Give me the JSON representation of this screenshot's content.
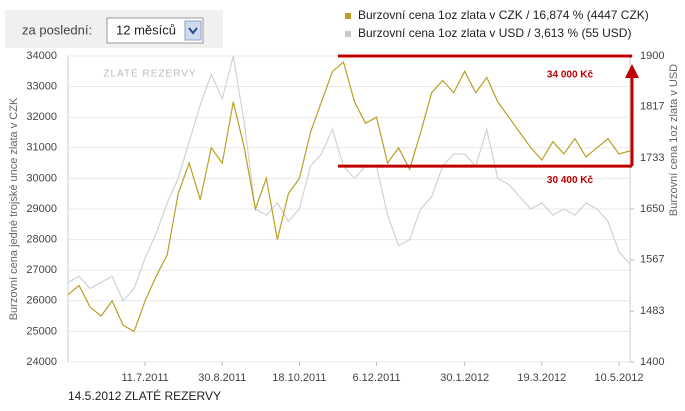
{
  "controls": {
    "label": "za poslední:",
    "selected": "12 měsíců"
  },
  "chart_data": {
    "type": "line",
    "watermark": "ZLATÉ REZERVY",
    "ylabel": "Burzovní cena jedné trojské unce zlata v CZK",
    "y2label": "Burzovní cena 1oz zlata v USD",
    "categories": [
      null,
      null,
      null,
      null,
      null,
      null,
      null,
      "11.7.2011",
      null,
      null,
      null,
      null,
      null,
      null,
      "30.8.2011",
      null,
      null,
      null,
      null,
      null,
      null,
      "18.10.2011",
      null,
      null,
      null,
      null,
      null,
      null,
      "6.12.2011",
      null,
      null,
      null,
      null,
      null,
      null,
      null,
      "30.1.2012",
      null,
      null,
      null,
      null,
      null,
      null,
      "19.3.2012",
      null,
      null,
      null,
      null,
      null,
      null,
      "10.5.2012",
      null
    ],
    "series": [
      {
        "name": "Burzovní cena 1oz zlata v CZK / 16,874 % (4447 CZK)",
        "color": "#b9a022",
        "values": [
          26200,
          26500,
          25800,
          25500,
          26000,
          25200,
          25000,
          26000,
          26800,
          27500,
          29500,
          30500,
          29300,
          31000,
          30500,
          32500,
          31000,
          29000,
          30000,
          28000,
          29500,
          30000,
          31500,
          32500,
          33500,
          33800,
          32500,
          31800,
          32000,
          30500,
          31000,
          30300,
          31500,
          32800,
          33200,
          32800,
          33500,
          32800,
          33300,
          32500,
          32000,
          31500,
          31000,
          30600,
          31200,
          30800,
          31300,
          30700,
          31000,
          31300,
          30800,
          30900
        ]
      },
      {
        "name": "Burzovní cena 1oz zlata v USD / 3,613 % (55 USD)",
        "color": "#d2d2d2",
        "axis": "y2",
        "values": [
          1530,
          1540,
          1520,
          1530,
          1540,
          1500,
          1520,
          1570,
          1610,
          1660,
          1700,
          1760,
          1820,
          1870,
          1830,
          1900,
          1790,
          1650,
          1640,
          1660,
          1630,
          1650,
          1720,
          1740,
          1780,
          1720,
          1700,
          1720,
          1720,
          1640,
          1590,
          1600,
          1650,
          1670,
          1720,
          1740,
          1740,
          1720,
          1780,
          1700,
          1690,
          1670,
          1650,
          1660,
          1640,
          1650,
          1640,
          1660,
          1650,
          1630,
          1580,
          1560
        ]
      }
    ],
    "ylim": [
      24000,
      34000
    ],
    "yticks": [
      24000,
      25000,
      26000,
      27000,
      28000,
      29000,
      30000,
      31000,
      32000,
      33000,
      34000
    ],
    "y2lim": [
      1400,
      1900
    ],
    "y2ticks": [
      1400,
      1483,
      1567,
      1650,
      1733,
      1817,
      1900
    ],
    "grid": true,
    "annotations": [
      {
        "text": "34 000 Kč",
        "value": 34000,
        "color": "#c00000"
      },
      {
        "text": "30 400 Kč",
        "value": 30400,
        "color": "#c00000"
      }
    ]
  },
  "footer": "14.5.2012 ZLATÉ REZERVY"
}
